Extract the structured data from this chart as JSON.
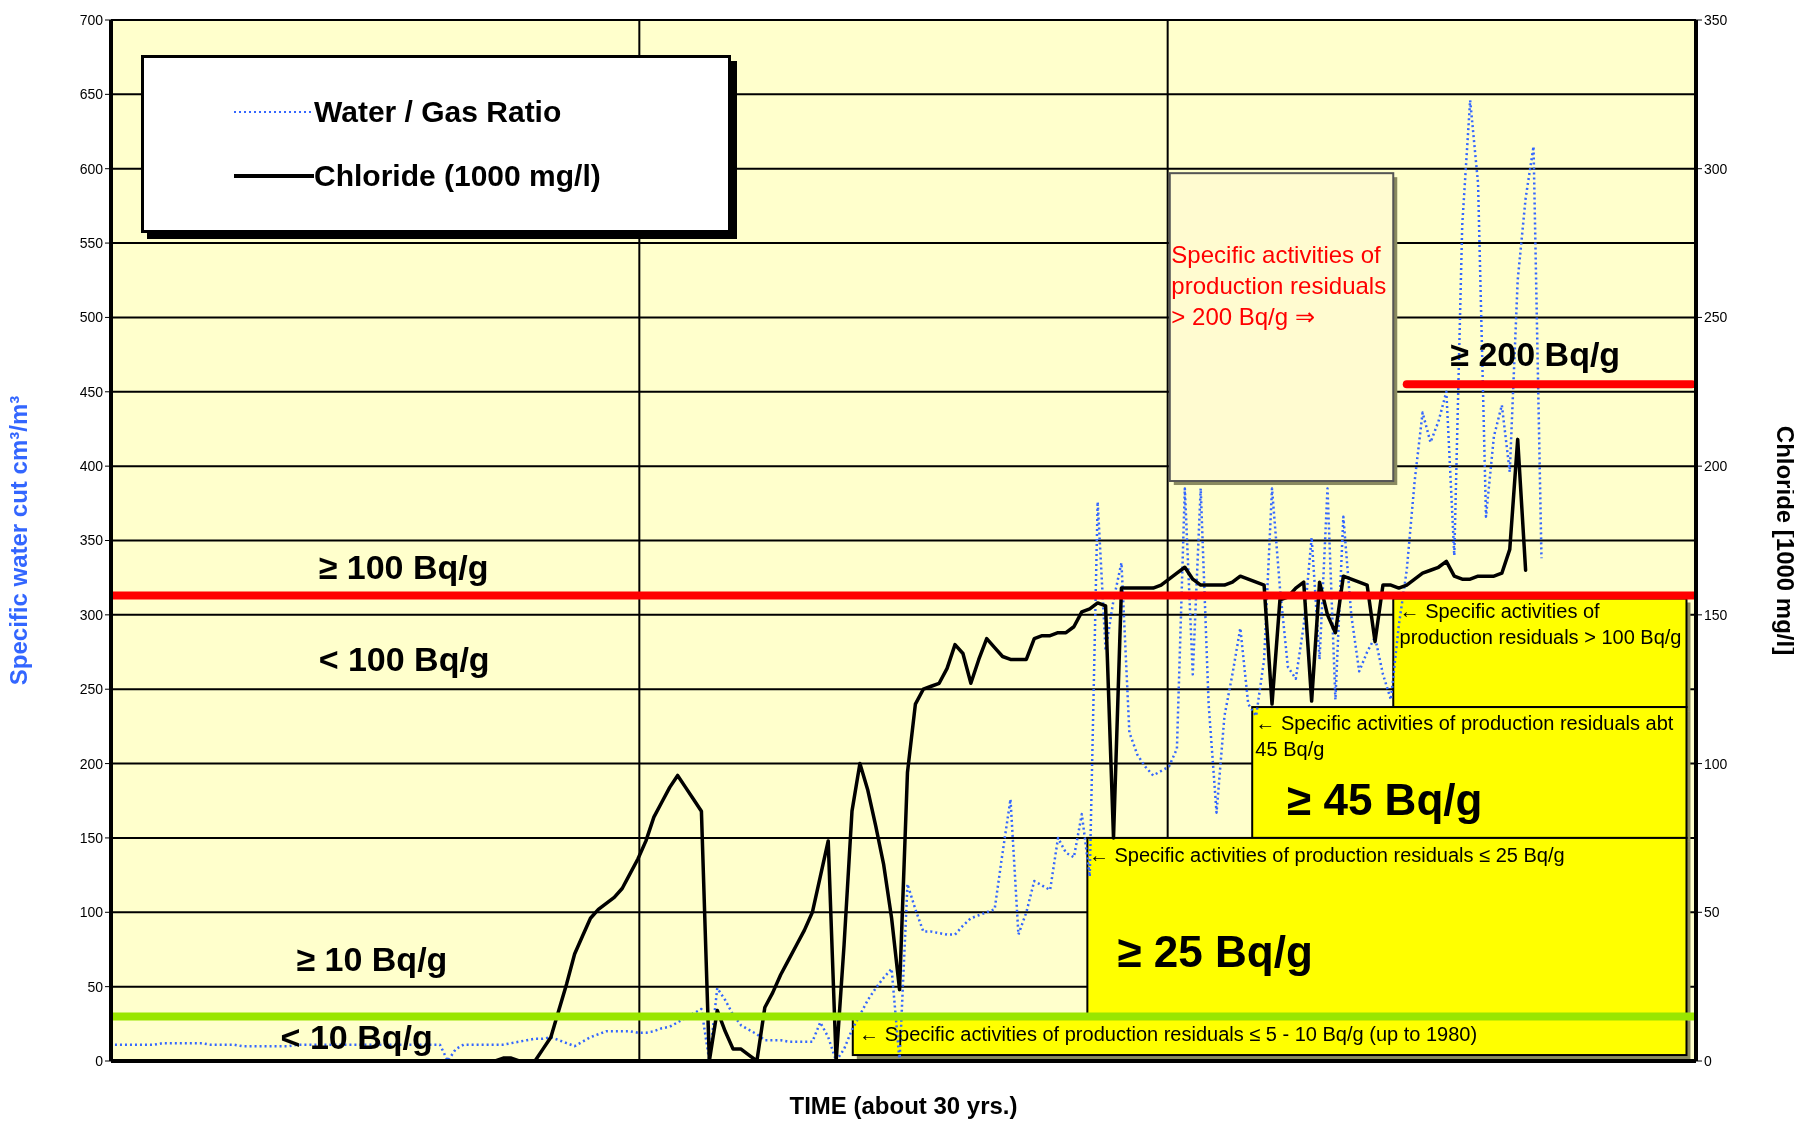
{
  "chart_data": {
    "type": "line",
    "xlabel": "TIME (about 30 yrs.)",
    "ylabel": "Specific water cut cm³/m³",
    "y2label": "Chloride [1000 mg/l]",
    "categories": [
      null,
      null,
      null,
      null,
      null,
      null,
      null,
      null,
      null,
      null,
      null,
      null,
      null,
      null,
      null,
      null,
      null,
      null,
      null,
      null,
      null,
      null,
      null,
      null,
      null,
      null,
      null,
      null,
      null,
      null,
      null,
      null,
      null,
      null,
      null,
      null,
      null,
      null,
      null,
      null,
      null,
      null,
      null,
      null,
      null,
      null,
      null,
      null,
      null,
      null,
      null,
      null,
      null,
      null,
      null,
      null,
      null,
      null,
      null,
      null,
      null,
      null,
      null,
      null,
      null,
      null,
      null,
      null,
      null,
      null,
      null,
      null,
      null,
      null,
      null,
      null,
      null,
      null,
      null,
      null,
      null,
      null,
      null,
      null,
      null,
      null,
      null,
      null,
      null,
      null,
      null,
      null,
      null,
      null,
      null,
      null,
      null,
      null,
      null,
      null,
      null,
      null,
      null,
      null,
      null,
      null,
      null,
      null,
      null,
      null,
      null,
      null,
      null,
      null,
      null,
      null,
      null,
      null,
      null,
      null,
      null,
      null,
      null,
      null,
      null,
      null,
      null,
      null,
      null,
      null,
      null,
      null,
      null,
      null,
      null,
      null,
      null,
      null,
      null,
      null,
      null,
      null,
      null,
      null,
      null,
      null,
      null,
      null,
      null,
      null,
      null,
      null,
      null,
      null,
      null,
      null,
      null,
      null,
      null,
      null,
      null,
      null,
      null,
      null,
      null,
      null,
      null,
      null,
      null,
      null,
      null,
      null,
      null,
      null,
      null,
      null,
      null,
      null,
      null,
      null,
      null,
      null,
      null,
      null,
      null,
      null,
      null,
      null,
      null,
      null,
      null,
      null,
      null,
      null,
      null,
      null,
      null,
      null,
      null,
      null
    ],
    "ylim": [
      0,
      700
    ],
    "yticks": [
      0,
      50,
      100,
      150,
      200,
      250,
      300,
      350,
      400,
      450,
      500,
      550,
      600,
      650,
      700
    ],
    "y2lim": [
      0,
      350
    ],
    "y2ticks": [
      0,
      50,
      100,
      150,
      200,
      250,
      300,
      350
    ],
    "tick_labels": "y",
    "grid": true,
    "legend": "top left",
    "marker": "none",
    "series": [
      {
        "name": "Water / Gas Ratio",
        "color": "#3366ff",
        "line_style": "dotted",
        "values": [
          11,
          11,
          11,
          11,
          11,
          11,
          12,
          12,
          12,
          12,
          12,
          12,
          11,
          11,
          11,
          11,
          10,
          10,
          10,
          10,
          10,
          10,
          10,
          11,
          11,
          11,
          11,
          11,
          11,
          11,
          11,
          11,
          11,
          11,
          11,
          11,
          11,
          11,
          11,
          11,
          11,
          11,
          0,
          8,
          11,
          11,
          11,
          11,
          11,
          11,
          12,
          13,
          14,
          15,
          15,
          16,
          14,
          12,
          10,
          13,
          16,
          18,
          20,
          20,
          20,
          20,
          19,
          19,
          20,
          22,
          23,
          26,
          29,
          32,
          35,
          0,
          49,
          41,
          31,
          24,
          21,
          18,
          14,
          14,
          14,
          13,
          13,
          13,
          13,
          26,
          16,
          0,
          8,
          21,
          31,
          41,
          49,
          56,
          62,
          0,
          119,
          102,
          87,
          87,
          86,
          85,
          85,
          91,
          96,
          98,
          100,
          102,
          140,
          176,
          85,
          100,
          121,
          118,
          115,
          150,
          140,
          137,
          166,
          124,
          376,
          276,
          310,
          335,
          221,
          206,
          198,
          192,
          195,
          198,
          210,
          385,
          260,
          385,
          240,
          167,
          232,
          260,
          291,
          240,
          232,
          270,
          385,
          318,
          265,
          257,
          293,
          352,
          270,
          385,
          243,
          366,
          300,
          262,
          275,
          285,
          260,
          243,
          293,
          330,
          390,
          436,
          416,
          430,
          450,
          340,
          562,
          646,
          590,
          366,
          420,
          441,
          396,
          525,
          580,
          615,
          338,
          null,
          null,
          null,
          null,
          null,
          null,
          null,
          null,
          null,
          null,
          null,
          null,
          null,
          null,
          null,
          null,
          null,
          null,
          null
        ]
      },
      {
        "name": "Chloride (1000 mg/l)",
        "color": "#000000",
        "line_style": "solid",
        "axis": "y2",
        "values": [
          null,
          null,
          null,
          null,
          null,
          null,
          null,
          null,
          null,
          null,
          null,
          null,
          null,
          null,
          null,
          null,
          null,
          null,
          null,
          null,
          null,
          null,
          null,
          null,
          null,
          null,
          null,
          null,
          null,
          null,
          null,
          null,
          null,
          null,
          null,
          null,
          null,
          null,
          null,
          null,
          null,
          null,
          null,
          null,
          null,
          null,
          null,
          0,
          0,
          1,
          1,
          0,
          0,
          0,
          4,
          8,
          17,
          26,
          36,
          42,
          48,
          51,
          53,
          55,
          58,
          63,
          68,
          74,
          82,
          87,
          92,
          96,
          92,
          88,
          84,
          0,
          17,
          10,
          4,
          4,
          2,
          0,
          18,
          23,
          29,
          34,
          39,
          44,
          50,
          62,
          74,
          0,
          39,
          84,
          100,
          91,
          79,
          66,
          48,
          24,
          97,
          120,
          125,
          126,
          127,
          132,
          140,
          137,
          127,
          135,
          142,
          139,
          136,
          135,
          135,
          135,
          142,
          143,
          143,
          144,
          144,
          146,
          151,
          152,
          154,
          153,
          75,
          159,
          159,
          159,
          159,
          159,
          160,
          162,
          164,
          166,
          162,
          160,
          160,
          160,
          160,
          161,
          163,
          162,
          161,
          160,
          120,
          155,
          156,
          159,
          161,
          121,
          161,
          150,
          144,
          163,
          162,
          161,
          160,
          141,
          160,
          160,
          159,
          160,
          162,
          164,
          165,
          166,
          168,
          163,
          162,
          162,
          163,
          163,
          163,
          164,
          172,
          209,
          165,
          null,
          null,
          null,
          null,
          null,
          null,
          null,
          null,
          null,
          null,
          null,
          null,
          null,
          null,
          null,
          null,
          null,
          null,
          null,
          null,
          null
        ]
      },
      {
        "color": "#ff0000",
        "line_style": "solid",
        "values": [
          null,
          null,
          null,
          null,
          null,
          null,
          null,
          null,
          null,
          null,
          null,
          null,
          null,
          null,
          null,
          null,
          null,
          null,
          null,
          null,
          null,
          null,
          null,
          null,
          null,
          null,
          null,
          null,
          null,
          null,
          null,
          null,
          null,
          null,
          null,
          null,
          null,
          null,
          null,
          null,
          null,
          null,
          null,
          null,
          null,
          null,
          null,
          null,
          null,
          null,
          null,
          null,
          null,
          null,
          null,
          null,
          null,
          null,
          null,
          null,
          null,
          null,
          null,
          null,
          null,
          null,
          null,
          null,
          null,
          null,
          null,
          null,
          null,
          null,
          null,
          null,
          null,
          null,
          null,
          null,
          null,
          null,
          null,
          null,
          null,
          null,
          null,
          null,
          null,
          null,
          null,
          null,
          null,
          null,
          null,
          null,
          null,
          null,
          null,
          null,
          null,
          null,
          null,
          null,
          null,
          null,
          null,
          null,
          null,
          null,
          null,
          null,
          null,
          null,
          null,
          null,
          null,
          null,
          null,
          null,
          null,
          null,
          null,
          null,
          null,
          null,
          null,
          null,
          null,
          null,
          null,
          null,
          null,
          null,
          null,
          null,
          null,
          null,
          null,
          null,
          null,
          null,
          null,
          null,
          null,
          null,
          null,
          null,
          null,
          null,
          null,
          null,
          null,
          null,
          null,
          null,
          null,
          null,
          null,
          null,
          null,
          null,
          null,
          455,
          455,
          455,
          455,
          455,
          455,
          455,
          455,
          455,
          455,
          455,
          455,
          455,
          455,
          455,
          455,
          455,
          455,
          455,
          455,
          455,
          455,
          455,
          455,
          455,
          455,
          455,
          455,
          455,
          455,
          455,
          455,
          455,
          455,
          455,
          455,
          455
        ]
      }
    ],
    "ref_lines": [
      {
        "axis": "y",
        "value": 313,
        "color": "#ff0000"
      },
      {
        "axis": "y",
        "value": 30,
        "color": "#99e600"
      }
    ],
    "annotations": [
      "≥ 100 Bq/g",
      "< 100 Bq/g",
      "≥ 10 Bq/g",
      "< 10 Bq/g",
      "≥ 200 Bq/g",
      "Specific activities of production residuals > 200 Bq/g ⇒",
      "← Specific activities of production residuals > 100 Bq/g",
      "← Specific activities of production residuals abt 45 Bq/g",
      "≥ 45 Bq/g",
      "← Specific activities of production residuals ≤ 25 Bq/g",
      "≥ 25 Bq/g",
      "← Specific activities of production residuals ≤ 5 - 10 Bq/g (up to 1980)"
    ]
  }
}
